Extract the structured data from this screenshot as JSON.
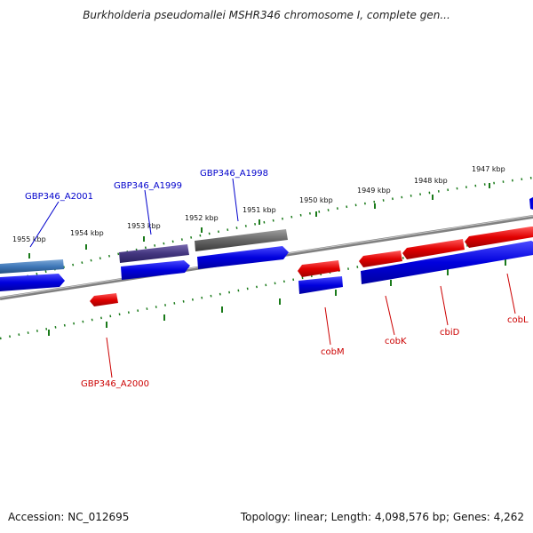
{
  "header": {
    "title": "Burkholderia pseudomallei MSHR346 chromosome I, complete gen..."
  },
  "footer": {
    "accession": "Accession: NC_012695",
    "topology": "Topology: linear; Length: 4,098,576 bp; Genes: 4,262"
  },
  "colors": {
    "forward_gene": "#0000dd",
    "reverse_gene": "#ee0000",
    "backbone": "#808080",
    "ticks": "#1a7a1a",
    "label_blue": "#0000cc",
    "label_red": "#cc0000"
  },
  "kbp_labels": [
    "1955 kbp",
    "1954 kbp",
    "1953 kbp",
    "1952 kbp",
    "1951 kbp",
    "1950 kbp",
    "1949 kbp",
    "1948 kbp",
    "1947 kbp"
  ],
  "gene_labels": {
    "top": [
      "GBP346_A2001",
      "GBP346_A1999",
      "GBP346_A1998"
    ],
    "bottom": [
      "GBP346_A2000",
      "cobM",
      "cobK",
      "cbiD",
      "cobL"
    ]
  }
}
